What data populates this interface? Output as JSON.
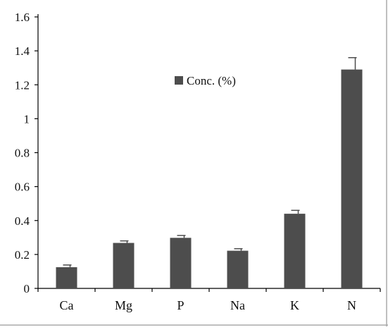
{
  "chart_data": {
    "type": "bar",
    "categories": [
      "Ca",
      "Mg",
      "P",
      "Na",
      "K",
      "N"
    ],
    "series": [
      {
        "name": "Conc. (%)",
        "values": [
          0.125,
          0.268,
          0.298,
          0.222,
          0.44,
          1.29
        ],
        "errors": [
          0.013,
          0.012,
          0.014,
          0.012,
          0.02,
          0.07
        ]
      }
    ],
    "title": "",
    "xlabel": "",
    "ylabel": "",
    "ylim": [
      0,
      1.6
    ],
    "yticks": [
      "0",
      "0.2",
      "0.4",
      "0.6",
      "0.8",
      "1",
      "1.2",
      "1.4",
      "1.6"
    ],
    "grid": false,
    "legend_position": "top-center",
    "colors": {
      "bar": "#4d4d4d",
      "axis": "#000000",
      "text": "#111111",
      "frame": "#aaaaaa"
    }
  }
}
